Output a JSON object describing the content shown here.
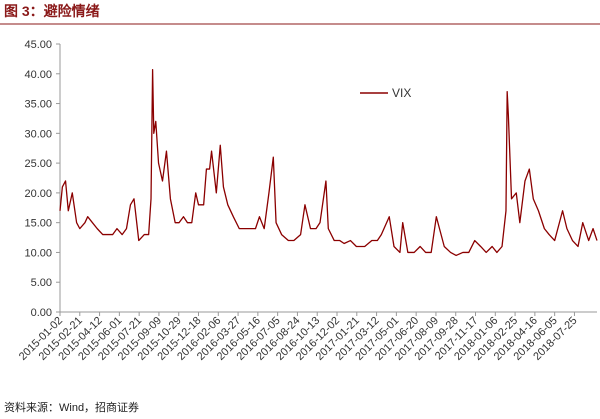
{
  "chart_data": {
    "type": "line",
    "title": "图 3：避险情绪",
    "source": "资料来源：Wind，招商证券",
    "legend": "upper center",
    "x": [
      "2015-01-02",
      "2015-01-08",
      "2015-01-16",
      "2015-01-23",
      "2015-02-02",
      "2015-02-13",
      "2015-02-21",
      "2015-03-06",
      "2015-03-13",
      "2015-03-25",
      "2015-04-06",
      "2015-04-20",
      "2015-05-04",
      "2015-05-15",
      "2015-05-26",
      "2015-06-08",
      "2015-06-19",
      "2015-06-29",
      "2015-07-08",
      "2015-07-20",
      "2015-08-03",
      "2015-08-14",
      "2015-08-20",
      "2015-08-24",
      "2015-08-27",
      "2015-09-01",
      "2015-09-08",
      "2015-09-18",
      "2015-09-28",
      "2015-10-08",
      "2015-10-20",
      "2015-10-30",
      "2015-11-10",
      "2015-11-20",
      "2015-12-01",
      "2015-12-11",
      "2015-12-18",
      "2015-12-31",
      "2016-01-07",
      "2016-01-15",
      "2016-01-20",
      "2016-02-01",
      "2016-02-11",
      "2016-02-19",
      "2016-03-01",
      "2016-03-15",
      "2016-03-30",
      "2016-04-12",
      "2016-04-28",
      "2016-05-10",
      "2016-05-20",
      "2016-06-01",
      "2016-06-13",
      "2016-06-24",
      "2016-07-01",
      "2016-07-15",
      "2016-08-01",
      "2016-08-15",
      "2016-09-01",
      "2016-09-12",
      "2016-09-26",
      "2016-10-10",
      "2016-10-20",
      "2016-11-04",
      "2016-11-10",
      "2016-11-25",
      "2016-12-09",
      "2016-12-20",
      "2017-01-05",
      "2017-01-20",
      "2017-02-10",
      "2017-02-28",
      "2017-03-14",
      "2017-03-24",
      "2017-04-13",
      "2017-04-25",
      "2017-05-10",
      "2017-05-17",
      "2017-05-30",
      "2017-06-15",
      "2017-06-30",
      "2017-07-14",
      "2017-07-28",
      "2017-08-10",
      "2017-08-18",
      "2017-08-30",
      "2017-09-15",
      "2017-09-29",
      "2017-10-16",
      "2017-10-31",
      "2017-11-15",
      "2017-11-30",
      "2017-12-14",
      "2017-12-29",
      "2018-01-10",
      "2018-01-23",
      "2018-02-02",
      "2018-02-05",
      "2018-02-08",
      "2018-02-16",
      "2018-02-28",
      "2018-03-09",
      "2018-03-22",
      "2018-04-02",
      "2018-04-12",
      "2018-04-25",
      "2018-05-10",
      "2018-05-22",
      "2018-06-05",
      "2018-06-25",
      "2018-07-06",
      "2018-07-20",
      "2018-08-03",
      "2018-08-15",
      "2018-08-30",
      "2018-09-10",
      "2018-09-20"
    ],
    "series": [
      {
        "name": "VIX",
        "color": "#8b0000",
        "values": [
          17,
          21,
          22,
          17,
          20,
          15,
          14,
          15,
          16,
          15,
          14,
          13,
          13,
          13,
          14,
          13,
          14,
          18,
          19,
          12,
          13,
          13,
          19,
          40.7,
          30,
          32,
          25,
          22,
          27,
          19,
          15,
          15,
          16,
          15,
          15,
          20,
          18,
          18,
          24,
          24,
          27,
          20,
          28,
          21,
          18,
          16,
          14,
          14,
          14,
          14,
          16,
          14,
          20,
          26,
          15,
          13,
          12,
          12,
          13,
          18,
          14,
          14,
          15,
          22,
          14,
          12,
          12,
          11.5,
          12,
          11,
          11,
          12,
          12,
          13,
          16,
          11,
          10,
          15,
          10,
          10,
          11,
          10,
          10,
          16,
          14,
          11,
          10,
          9.5,
          10,
          10,
          12,
          11,
          10,
          11,
          10,
          11,
          17,
          37,
          33,
          19,
          20,
          15,
          22,
          24,
          19,
          17,
          14,
          13,
          12,
          17,
          14,
          12,
          11,
          15,
          12,
          14,
          12
        ]
      }
    ],
    "xlim": [
      "2015-01-02",
      "2018-09-20"
    ],
    "xticks": [
      "2015-01-02",
      "2015-02-21",
      "2015-04-12",
      "2015-06-01",
      "2015-07-21",
      "2015-09-09",
      "2015-10-29",
      "2015-12-18",
      "2016-02-06",
      "2016-03-27",
      "2016-05-16",
      "2016-07-05",
      "2016-08-24",
      "2016-10-13",
      "2016-12-02",
      "2017-01-21",
      "2017-03-12",
      "2017-05-01",
      "2017-06-20",
      "2017-08-09",
      "2017-09-28",
      "2017-11-17",
      "2018-01-06",
      "2018-02-25",
      "2018-04-16",
      "2018-06-05",
      "2018-07-25"
    ],
    "ylim": [
      0,
      45
    ],
    "yticks": [
      {
        "value": 0,
        "label": "0.00"
      },
      {
        "value": 5,
        "label": "5.00"
      },
      {
        "value": 10,
        "label": "10.00"
      },
      {
        "value": 15,
        "label": "15.00"
      },
      {
        "value": 20,
        "label": "20.00"
      },
      {
        "value": 25,
        "label": "25.00"
      },
      {
        "value": 30,
        "label": "30.00"
      },
      {
        "value": 35,
        "label": "35.00"
      },
      {
        "value": 40,
        "label": "40.00"
      },
      {
        "value": 45,
        "label": "45.00"
      }
    ]
  }
}
